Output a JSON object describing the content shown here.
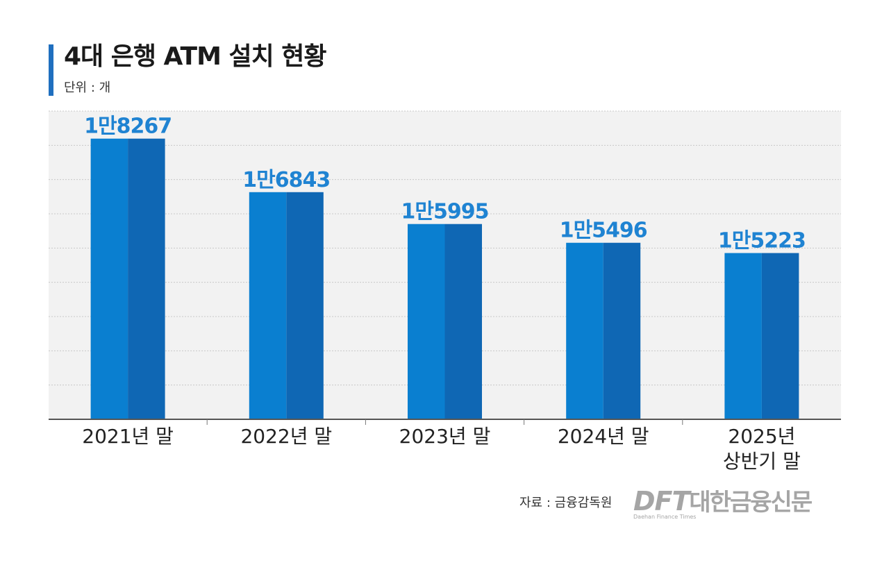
{
  "title": "4대 은행 ATM 설치 현황",
  "unit": "단위 : 개",
  "source": "자료 : 금융감독원",
  "logo": {
    "en": "DFT",
    "ko": "대한금융신문",
    "sub": "Daehan Finance Times"
  },
  "colors": {
    "bar_light": "#0a7fd0",
    "bar_dark": "#0f67b4",
    "plot_bg": "#f2f2f2",
    "grid": "#c8c8c8",
    "label": "#1f83d2",
    "accent": "#1f6fbf"
  },
  "chart_data": {
    "type": "bar",
    "title": "4대 은행 ATM 설치 현황",
    "ylabel": "단위 : 개",
    "categories": [
      "2021년 말",
      "2022년 말",
      "2023년 말",
      "2024년 말",
      "2025년\n상반기 말"
    ],
    "values": [
      18267,
      16843,
      15995,
      15496,
      15223
    ],
    "data_labels": [
      "1만8267",
      "1만6843",
      "1만5995",
      "1만5496",
      "1만5223"
    ],
    "ylim": [
      10800,
      19000
    ],
    "grid": true,
    "legend": "none"
  }
}
